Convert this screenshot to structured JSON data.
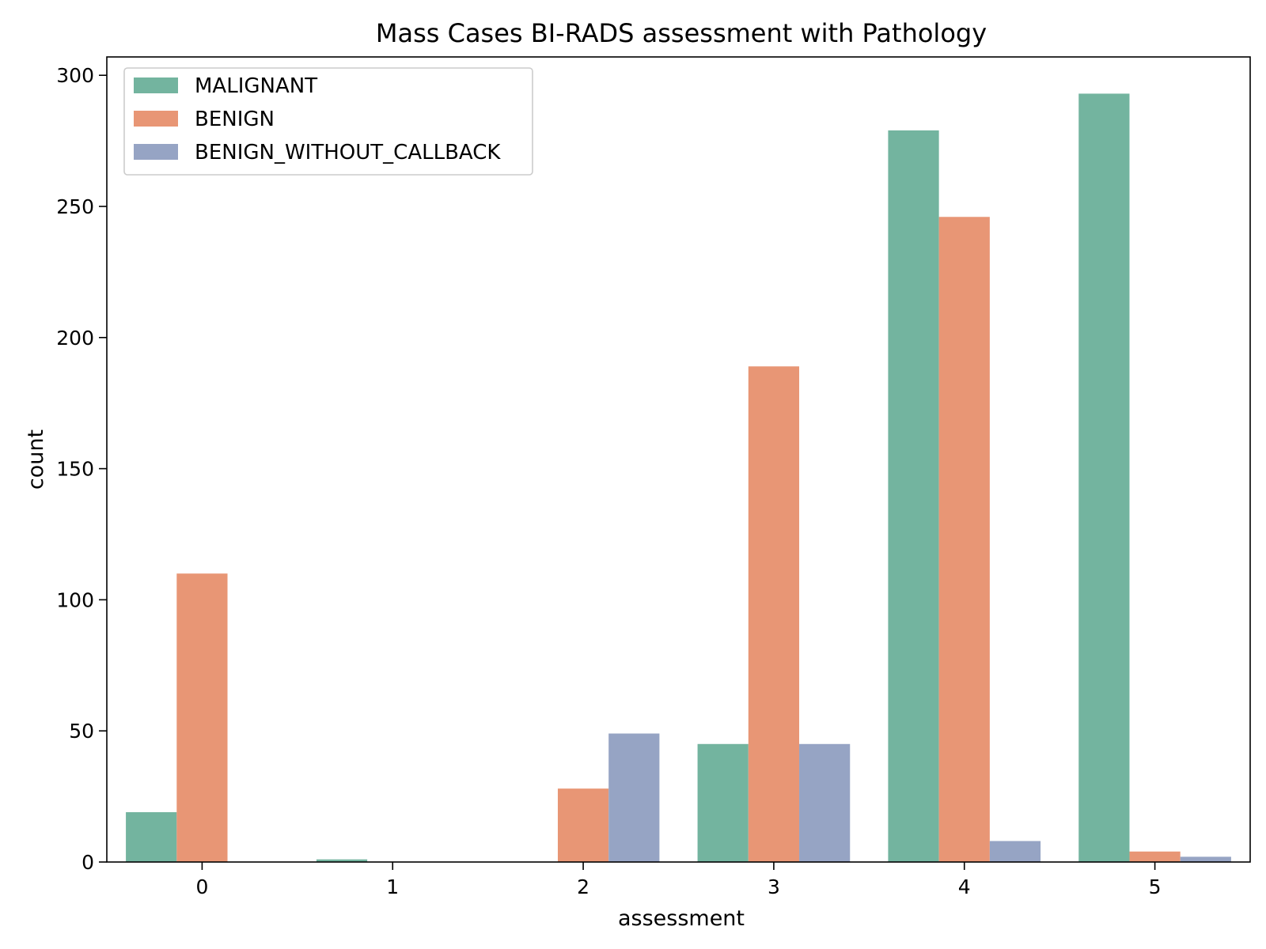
{
  "chart_data": {
    "type": "bar",
    "title": "Mass Cases BI-RADS assessment with Pathology",
    "xlabel": "assessment",
    "ylabel": "count",
    "categories": [
      "0",
      "1",
      "2",
      "3",
      "4",
      "5"
    ],
    "ylim": [
      0,
      307
    ],
    "yticks": [
      0,
      50,
      100,
      150,
      200,
      250,
      300
    ],
    "grid": false,
    "legend_position": "top-left",
    "series": [
      {
        "name": "MALIGNANT",
        "color": "#73b49f",
        "values": [
          19,
          1,
          0,
          45,
          279,
          293
        ]
      },
      {
        "name": "BENIGN",
        "color": "#e89675",
        "values": [
          110,
          0,
          28,
          189,
          246,
          4
        ]
      },
      {
        "name": "BENIGN_WITHOUT_CALLBACK",
        "color": "#96a4c4",
        "values": [
          0,
          0,
          49,
          45,
          8,
          2
        ]
      }
    ]
  }
}
